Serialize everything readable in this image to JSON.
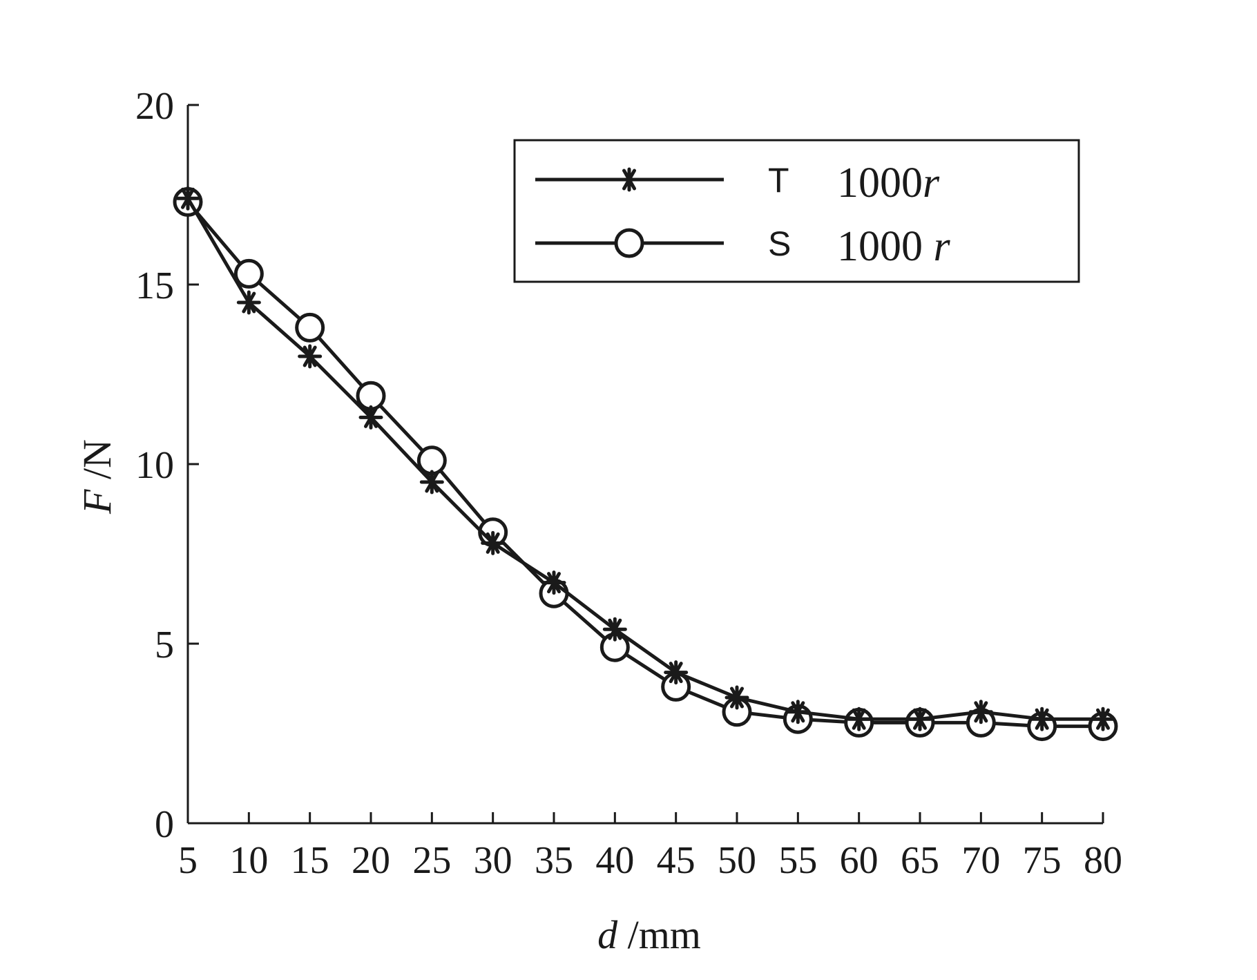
{
  "chart_data": {
    "type": "line",
    "title": "",
    "xlabel": {
      "symbol": "d",
      "unit": " /mm"
    },
    "ylabel": {
      "symbol": "F",
      "unit": " /N"
    },
    "xlim": [
      5,
      80
    ],
    "ylim": [
      0,
      20
    ],
    "xticks": [
      5,
      10,
      15,
      20,
      25,
      30,
      35,
      40,
      45,
      50,
      55,
      60,
      65,
      70,
      75,
      80
    ],
    "yticks": [
      0,
      5,
      10,
      15,
      20
    ],
    "grid": false,
    "legend": {
      "position": "top-right"
    },
    "x": [
      5,
      10,
      15,
      20,
      25,
      30,
      35,
      40,
      45,
      50,
      55,
      60,
      65,
      70,
      75,
      80
    ],
    "series": [
      {
        "code": "T",
        "label": {
          "prefix": "1000",
          "var": "r"
        },
        "marker": "asterisk",
        "values": [
          17.4,
          14.5,
          13.0,
          11.3,
          9.5,
          7.8,
          6.7,
          5.4,
          4.2,
          3.5,
          3.1,
          2.9,
          2.9,
          3.1,
          2.9,
          2.9
        ]
      },
      {
        "code": "S",
        "label": {
          "prefix": "1000 ",
          "var": "r"
        },
        "marker": "circle",
        "values": [
          17.3,
          15.3,
          13.8,
          11.9,
          10.1,
          8.1,
          6.4,
          4.9,
          3.8,
          3.1,
          2.9,
          2.8,
          2.8,
          2.8,
          2.7,
          2.7
        ]
      }
    ]
  }
}
